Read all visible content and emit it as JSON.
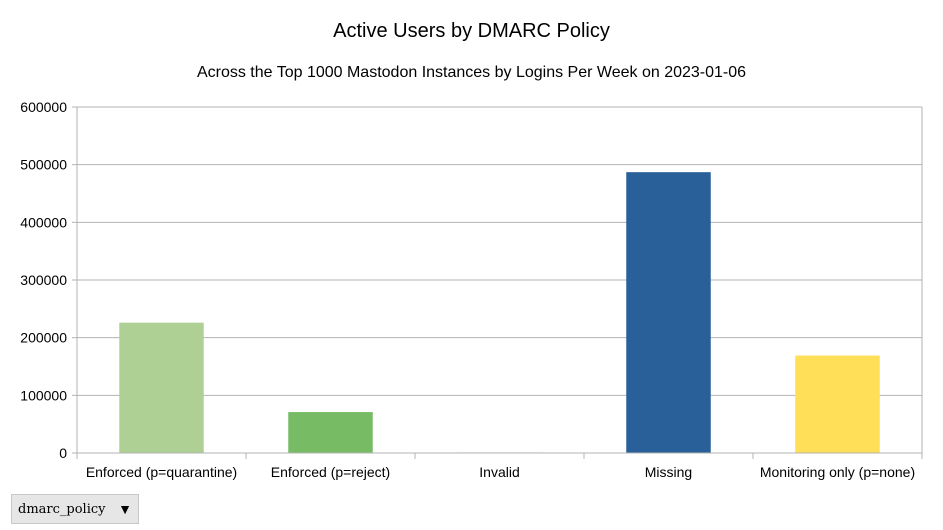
{
  "chart_data": {
    "type": "bar",
    "title": "Active Users by DMARC Policy",
    "subtitle": "Across the Top 1000 Mastodon Instances by Logins Per Week on 2023-01-06",
    "xlabel": "",
    "ylabel": "",
    "categories": [
      "Enforced (p=quarantine)",
      "Enforced (p=reject)",
      "Invalid",
      "Missing",
      "Monitoring only (p=none)"
    ],
    "values": [
      226000,
      71000,
      1000,
      487000,
      169000
    ],
    "bar_colors": [
      "#afd095",
      "#77bc65",
      "#ffa6a6",
      "#2a6099",
      "#ffdf57"
    ],
    "ylim": [
      0,
      600000
    ],
    "yticks": [
      "600000",
      "500000",
      "400000",
      "300000",
      "200000",
      "100000",
      "0"
    ],
    "grid": true,
    "legend": "none"
  },
  "field_button": {
    "label": "dmarc_policy",
    "icon": "triangle-down-icon"
  }
}
